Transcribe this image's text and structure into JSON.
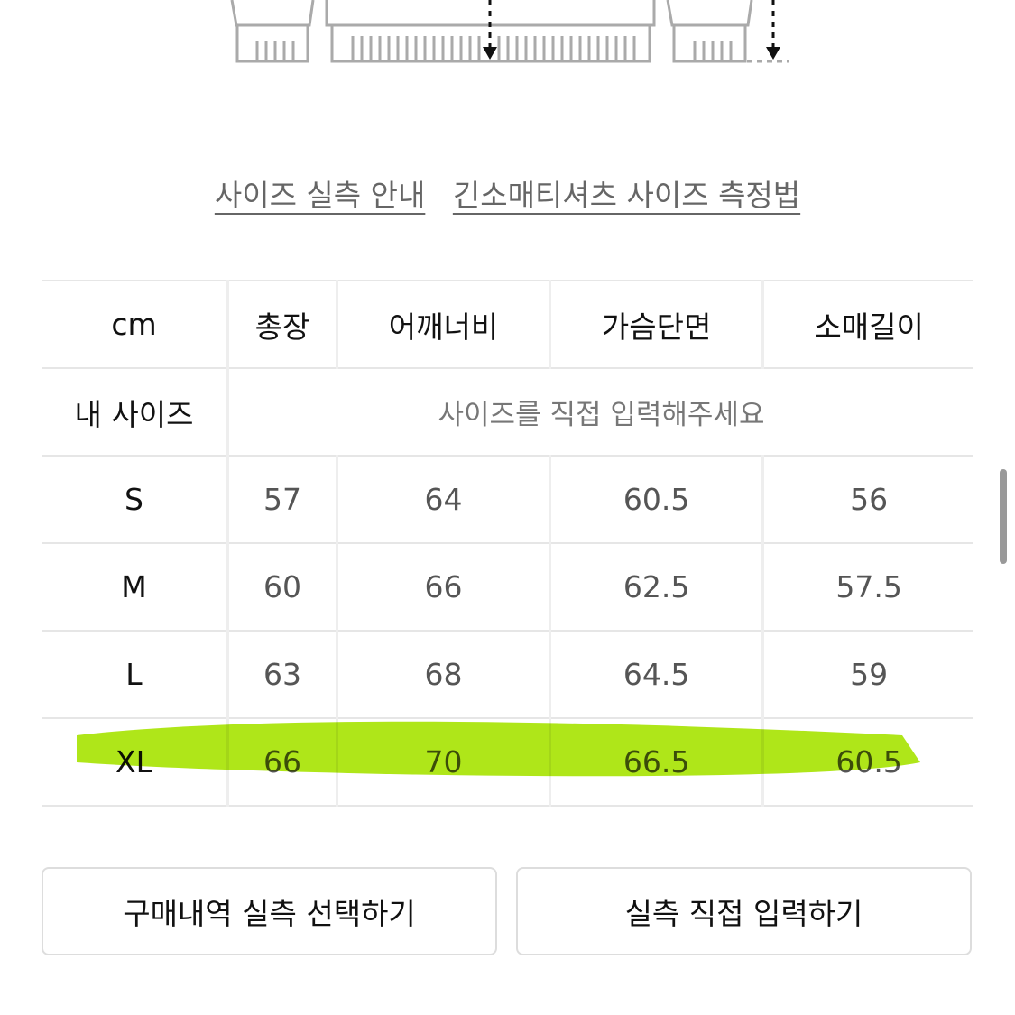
{
  "links": [
    "사이즈 실측 안내",
    "긴소매티셔츠 사이즈 측정법"
  ],
  "table": {
    "header": [
      "cm",
      "총장",
      "어깨너비",
      "가슴단면",
      "소매길이"
    ],
    "my_size": {
      "label": "내 사이즈",
      "note": "사이즈를 직접 입력해주세요"
    },
    "rows": [
      {
        "size": "S",
        "values": [
          "57",
          "64",
          "60.5",
          "56"
        ]
      },
      {
        "size": "M",
        "values": [
          "60",
          "66",
          "62.5",
          "57.5"
        ]
      },
      {
        "size": "L",
        "values": [
          "63",
          "68",
          "64.5",
          "59"
        ]
      },
      {
        "size": "XL",
        "values": [
          "66",
          "70",
          "66.5",
          "60.5"
        ],
        "highlighted": true
      }
    ]
  },
  "highlight_color": "#a6e300",
  "buttons": {
    "purchase": "구매내역 실측 선택하기",
    "manual": "실측 직접 입력하기"
  }
}
